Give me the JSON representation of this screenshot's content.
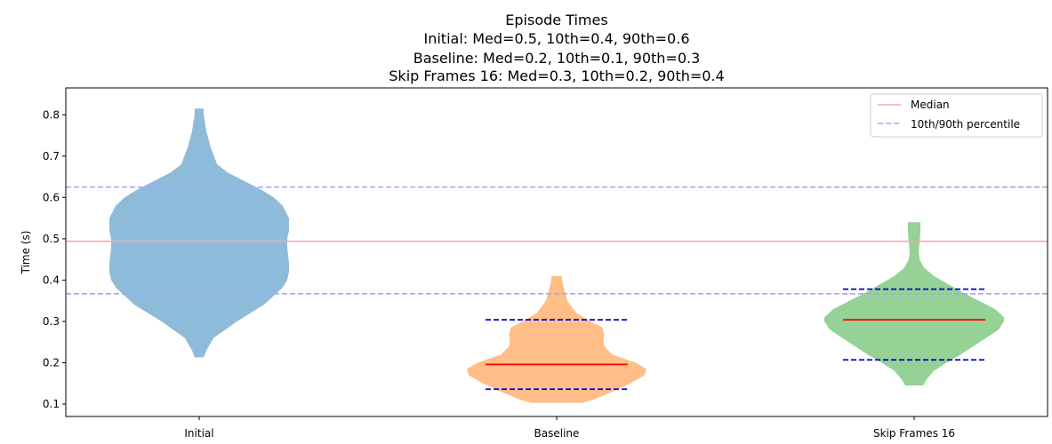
{
  "chart_data": {
    "type": "violin",
    "title_lines": [
      "Episode Times",
      "Initial: Med=0.5, 10th=0.4, 90th=0.6",
      "Baseline: Med=0.2, 10th=0.1, 90th=0.3",
      "Skip Frames 16: Med=0.3, 10th=0.2, 90th=0.4"
    ],
    "xlabel": "",
    "ylabel": "Time (s)",
    "ylim": [
      0.07,
      0.865
    ],
    "yticks": [
      0.1,
      0.2,
      0.3,
      0.4,
      0.5,
      0.6,
      0.7,
      0.8
    ],
    "ytick_labels": [
      "0.1",
      "0.2",
      "0.3",
      "0.4",
      "0.5",
      "0.6",
      "0.7",
      "0.8"
    ],
    "categories": [
      "Initial",
      "Baseline",
      "Skip Frames 16"
    ],
    "grid": false,
    "legend_position": "top-right",
    "colors": {
      "violins": [
        "#8fbbdb",
        "#ffbe87",
        "#96d196"
      ],
      "median_global": "#f4aaaa",
      "percentile_global": "#a0a8f2",
      "median_local": "#ff0000",
      "percentile_local": "#0000d8"
    },
    "global_lines": {
      "median": 0.494,
      "p10": 0.367,
      "p90": 0.625
    },
    "legend": [
      {
        "label": "Median",
        "style": "solid"
      },
      {
        "label": "10th/90th percentile",
        "style": "dashed"
      }
    ],
    "violins": [
      {
        "name": "Initial",
        "min": 0.213,
        "max": 0.815,
        "show_stats": false,
        "shape": [
          [
            0.213,
            5
          ],
          [
            0.23,
            8
          ],
          [
            0.26,
            16
          ],
          [
            0.3,
            42
          ],
          [
            0.34,
            72
          ],
          [
            0.38,
            92
          ],
          [
            0.4,
            98
          ],
          [
            0.42,
            100
          ],
          [
            0.44,
            100
          ],
          [
            0.46,
            99
          ],
          [
            0.48,
            98
          ],
          [
            0.5,
            98
          ],
          [
            0.52,
            100
          ],
          [
            0.55,
            100
          ],
          [
            0.58,
            93
          ],
          [
            0.6,
            83
          ],
          [
            0.62,
            68
          ],
          [
            0.64,
            50
          ],
          [
            0.66,
            32
          ],
          [
            0.68,
            20
          ],
          [
            0.72,
            13
          ],
          [
            0.76,
            8
          ],
          [
            0.8,
            5
          ],
          [
            0.815,
            5
          ]
        ]
      },
      {
        "name": "Baseline",
        "min": 0.103,
        "max": 0.41,
        "show_stats": true,
        "median": 0.196,
        "p10": 0.136,
        "p90": 0.304,
        "shape": [
          [
            0.103,
            28
          ],
          [
            0.11,
            40
          ],
          [
            0.13,
            62
          ],
          [
            0.15,
            82
          ],
          [
            0.17,
            98
          ],
          [
            0.185,
            100
          ],
          [
            0.2,
            88
          ],
          [
            0.22,
            62
          ],
          [
            0.24,
            53
          ],
          [
            0.255,
            52
          ],
          [
            0.27,
            53
          ],
          [
            0.285,
            51
          ],
          [
            0.3,
            38
          ],
          [
            0.32,
            22
          ],
          [
            0.35,
            12
          ],
          [
            0.38,
            8
          ],
          [
            0.4,
            6
          ],
          [
            0.41,
            6
          ]
        ]
      },
      {
        "name": "Skip Frames 16",
        "min": 0.145,
        "max": 0.54,
        "show_stats": true,
        "median": 0.304,
        "p10": 0.207,
        "p90": 0.378,
        "shape": [
          [
            0.145,
            10
          ],
          [
            0.16,
            14
          ],
          [
            0.18,
            22
          ],
          [
            0.2,
            36
          ],
          [
            0.22,
            52
          ],
          [
            0.24,
            66
          ],
          [
            0.26,
            80
          ],
          [
            0.28,
            94
          ],
          [
            0.3,
            100
          ],
          [
            0.31,
            100
          ],
          [
            0.33,
            90
          ],
          [
            0.35,
            72
          ],
          [
            0.37,
            54
          ],
          [
            0.39,
            38
          ],
          [
            0.41,
            22
          ],
          [
            0.43,
            11
          ],
          [
            0.45,
            6
          ],
          [
            0.47,
            5
          ],
          [
            0.49,
            6
          ],
          [
            0.52,
            7
          ],
          [
            0.54,
            7
          ]
        ]
      }
    ]
  }
}
